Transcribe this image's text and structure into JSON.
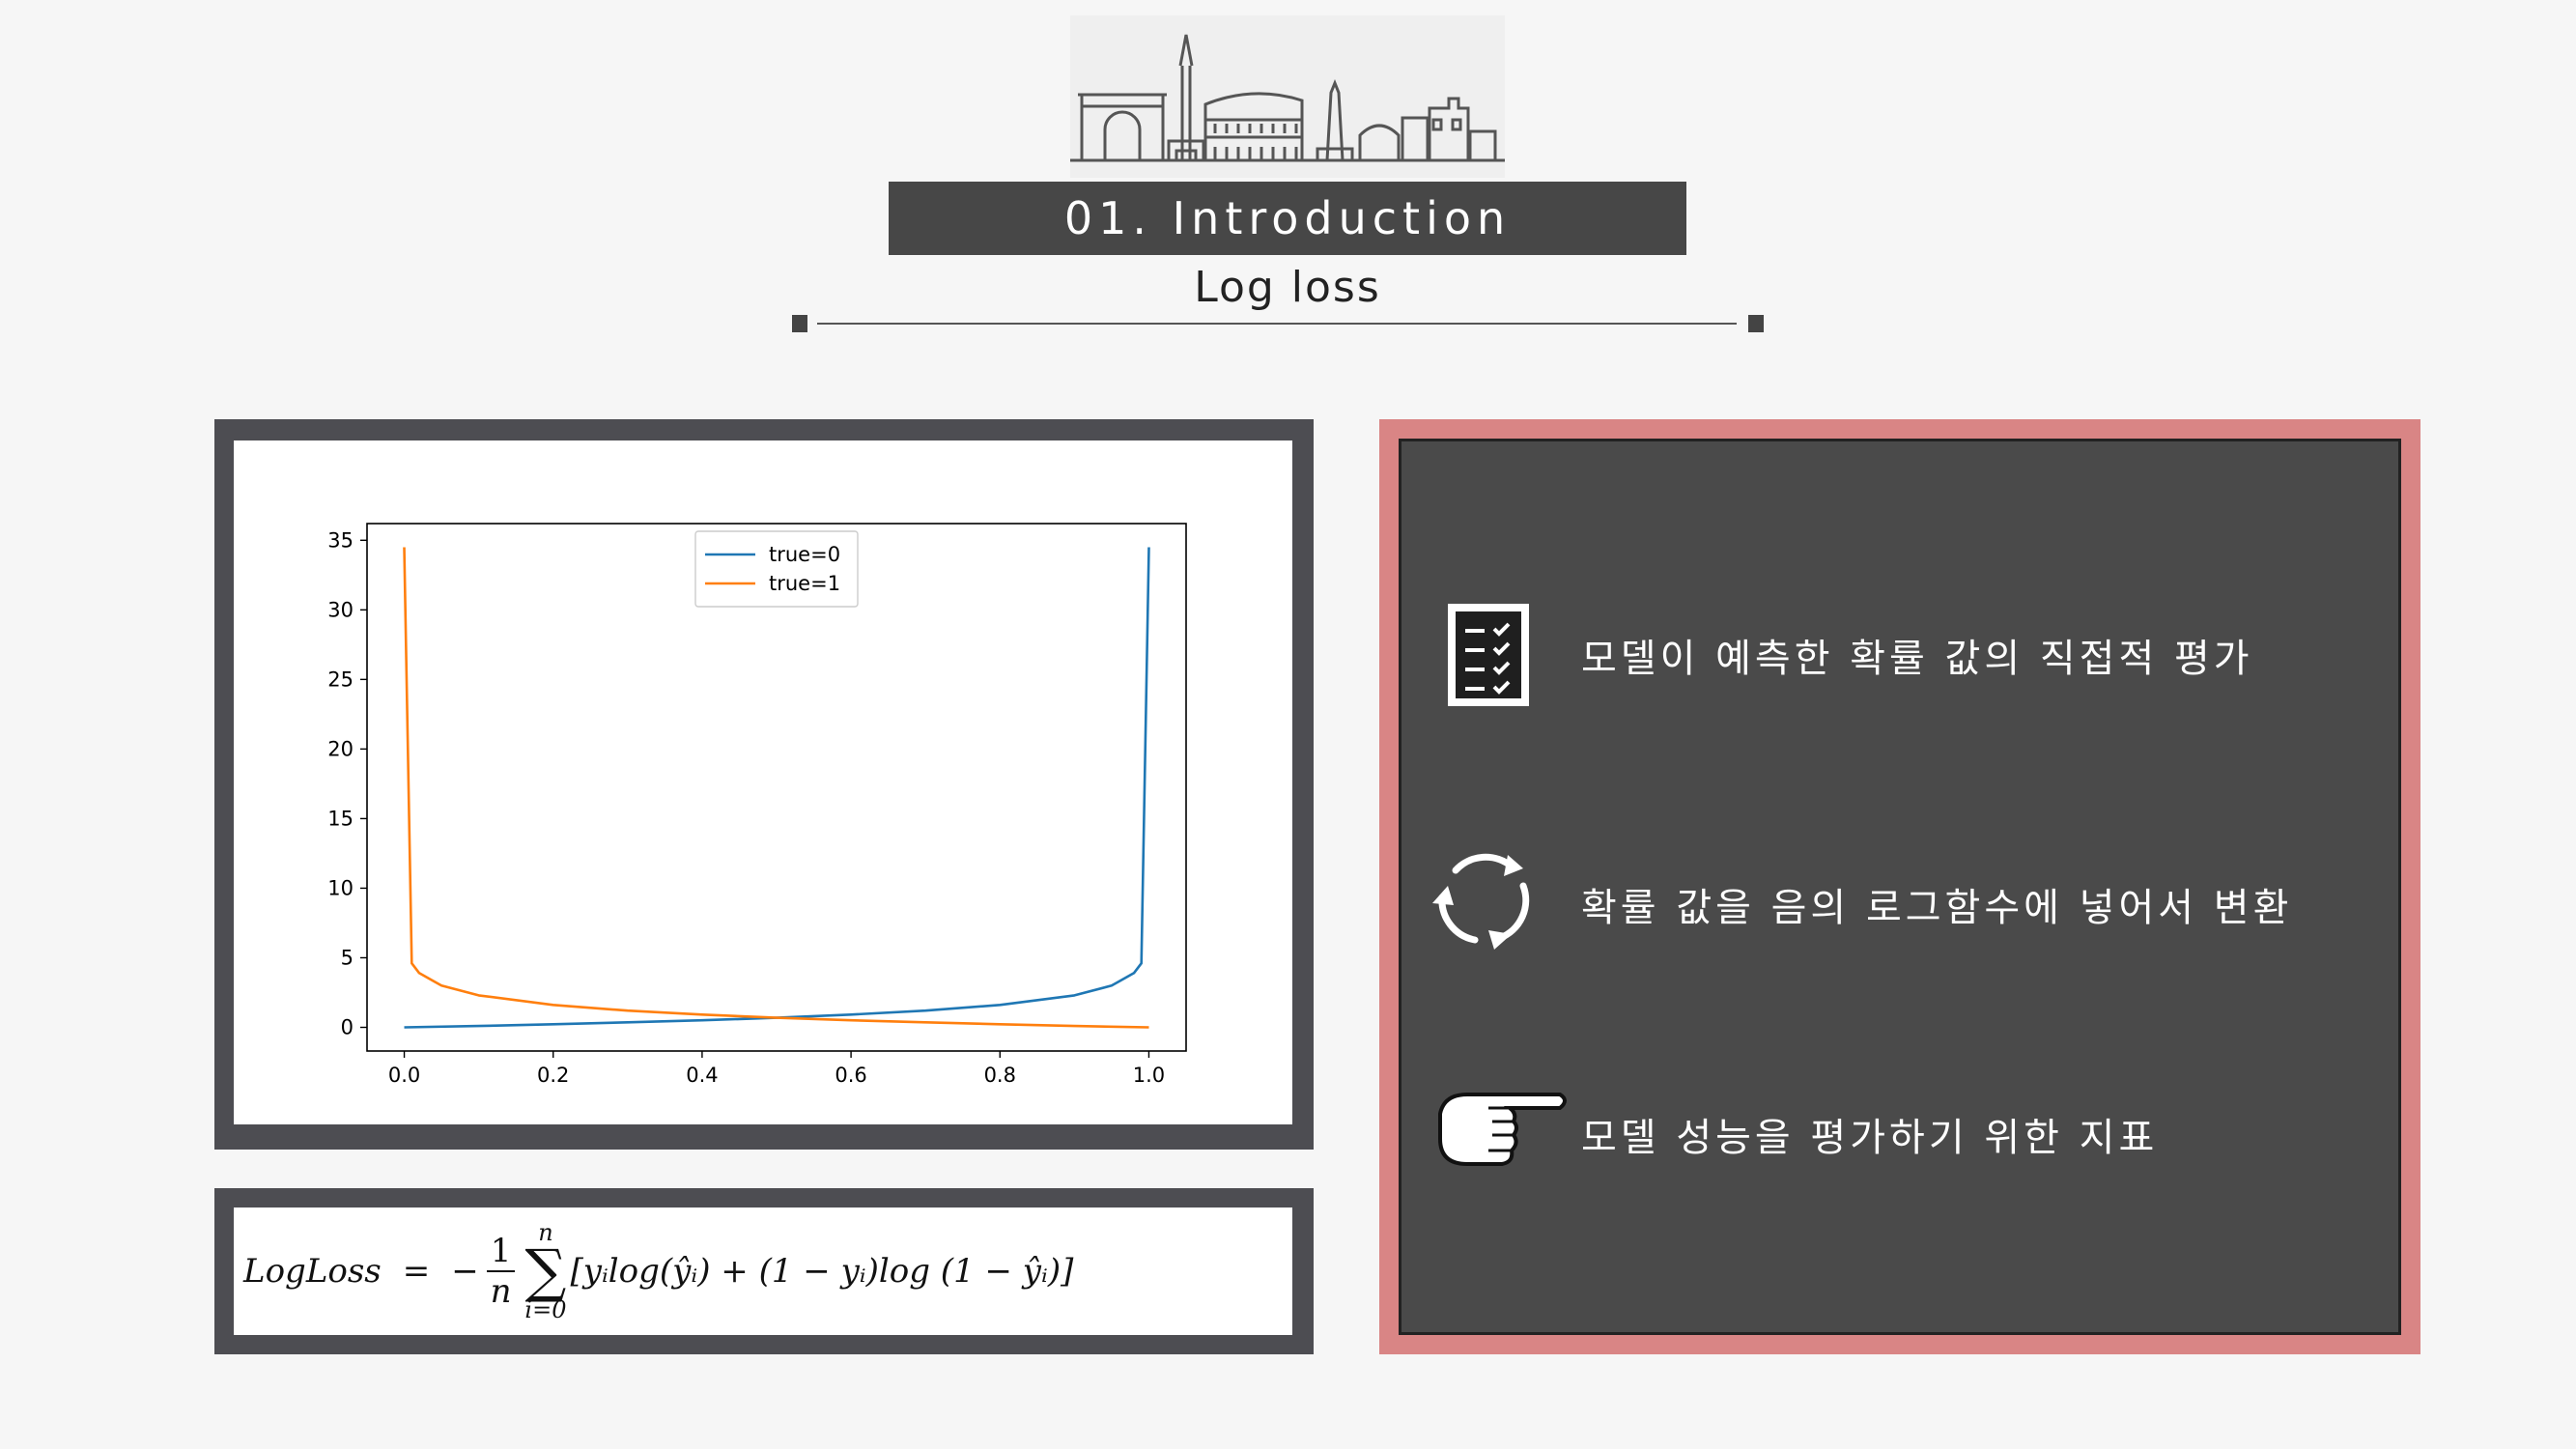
{
  "header": {
    "section_title": "01. Introduction",
    "subtitle": "Log loss",
    "skyline_icon": "city-skyline-icon"
  },
  "chart_data": {
    "type": "line",
    "title": "",
    "xlabel": "",
    "ylabel": "",
    "xlim": [
      0.0,
      1.0
    ],
    "ylim": [
      0,
      35
    ],
    "x_ticks": [
      "0.0",
      "0.2",
      "0.4",
      "0.6",
      "0.8",
      "1.0"
    ],
    "y_ticks": [
      "0",
      "5",
      "10",
      "15",
      "20",
      "25",
      "30",
      "35"
    ],
    "legend_position": "upper-center",
    "series": [
      {
        "name": "true=0",
        "color": "#1f77b4",
        "x": [
          0.0,
          0.1,
          0.2,
          0.3,
          0.4,
          0.5,
          0.6,
          0.7,
          0.8,
          0.9,
          0.95,
          0.98,
          0.99,
          1.0
        ],
        "y": [
          0.0,
          0.1,
          0.22,
          0.36,
          0.51,
          0.69,
          0.92,
          1.2,
          1.61,
          2.3,
          3.0,
          3.9,
          4.6,
          34.5
        ]
      },
      {
        "name": "true=1",
        "color": "#ff7f0e",
        "x": [
          0.0,
          0.01,
          0.02,
          0.05,
          0.1,
          0.2,
          0.3,
          0.4,
          0.5,
          0.6,
          0.7,
          0.8,
          0.9,
          1.0
        ],
        "y": [
          34.5,
          4.6,
          3.9,
          3.0,
          2.3,
          1.61,
          1.2,
          0.92,
          0.69,
          0.51,
          0.36,
          0.22,
          0.1,
          0.0
        ]
      }
    ]
  },
  "formula": {
    "lhs": "LogLoss",
    "equals": "=",
    "minus": "−",
    "frac_num": "1",
    "frac_den": "n",
    "sum_upper": "n",
    "sum_symbol": "∑",
    "sum_lower": "i=0",
    "body": "[yᵢlog(ŷᵢ) + (1 − yᵢ)log (1 −  ŷᵢ)]"
  },
  "panel": {
    "items": [
      {
        "icon": "checklist-icon",
        "text": "모델이 예측한 확률 값의 직접적 평가"
      },
      {
        "icon": "refresh-cycle-icon",
        "text": "확률 값을 음의 로그함수에 넣어서 변환"
      },
      {
        "icon": "pointing-hand-icon",
        "text": "모델 성능을 평가하기 위한 지표"
      }
    ]
  }
}
